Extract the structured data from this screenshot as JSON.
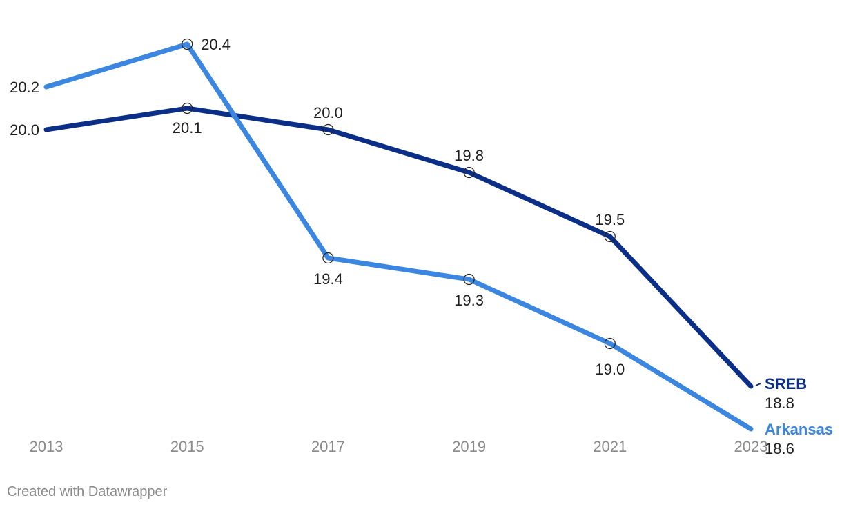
{
  "chart_data": {
    "type": "line",
    "x": [
      "2013",
      "2015",
      "2017",
      "2019",
      "2021",
      "2023"
    ],
    "series": [
      {
        "name": "SREB",
        "values": [
          20.0,
          20.1,
          20.0,
          19.8,
          19.5,
          18.8
        ],
        "labels": [
          "20.0",
          "20.1",
          "20.0",
          "19.8",
          "19.5",
          "18.8"
        ],
        "color": "#0b2f87"
      },
      {
        "name": "Arkansas",
        "values": [
          20.2,
          20.4,
          19.4,
          19.3,
          19.0,
          18.6
        ],
        "labels": [
          "20.2",
          "20.4",
          "19.4",
          "19.3",
          "19.0",
          "18.6"
        ],
        "color": "#3a86e0"
      }
    ],
    "ylim": [
      18.6,
      20.4
    ],
    "grid": false,
    "legend": "inline-right"
  },
  "footer": {
    "credit": "Created with Datawrapper"
  },
  "colors": {
    "axis_text": "#8a8a8a",
    "label_text": "#1f1f1f"
  }
}
